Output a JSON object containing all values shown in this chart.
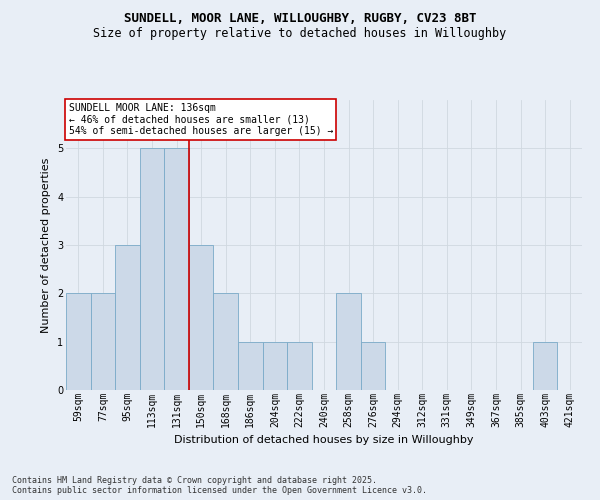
{
  "title_line1": "SUNDELL, MOOR LANE, WILLOUGHBY, RUGBY, CV23 8BT",
  "title_line2": "Size of property relative to detached houses in Willoughby",
  "xlabel": "Distribution of detached houses by size in Willoughby",
  "ylabel": "Number of detached properties",
  "footer_line1": "Contains HM Land Registry data © Crown copyright and database right 2025.",
  "footer_line2": "Contains public sector information licensed under the Open Government Licence v3.0.",
  "categories": [
    "59sqm",
    "77sqm",
    "95sqm",
    "113sqm",
    "131sqm",
    "150sqm",
    "168sqm",
    "186sqm",
    "204sqm",
    "222sqm",
    "240sqm",
    "258sqm",
    "276sqm",
    "294sqm",
    "312sqm",
    "331sqm",
    "349sqm",
    "367sqm",
    "385sqm",
    "403sqm",
    "421sqm"
  ],
  "values": [
    2,
    2,
    3,
    5,
    5,
    3,
    2,
    1,
    1,
    1,
    0,
    2,
    1,
    0,
    0,
    0,
    0,
    0,
    0,
    1,
    0
  ],
  "bar_color": "#ccd9e8",
  "bar_edge_color": "#7aaac8",
  "grid_color": "#d0d8e0",
  "background_color": "#e8eef6",
  "red_line_x": 4.5,
  "annotation_title": "SUNDELL MOOR LANE: 136sqm",
  "annotation_line2": "← 46% of detached houses are smaller (13)",
  "annotation_line3": "54% of semi-detached houses are larger (15) →",
  "annotation_box_color": "#ffffff",
  "annotation_box_edge": "#cc0000",
  "red_line_color": "#cc0000",
  "ylim": [
    0,
    6
  ],
  "yticks": [
    0,
    1,
    2,
    3,
    4,
    5
  ],
  "title_fontsize": 9,
  "subtitle_fontsize": 8.5,
  "tick_fontsize": 7,
  "ylabel_fontsize": 8,
  "xlabel_fontsize": 8,
  "footer_fontsize": 6,
  "annot_fontsize": 7
}
